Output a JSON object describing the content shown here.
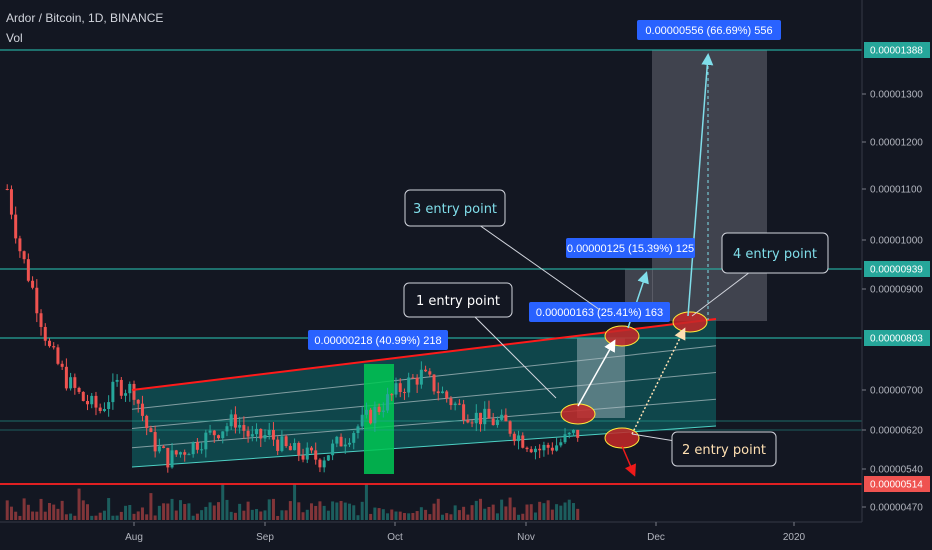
{
  "header": {
    "title": "Ardor / Bitcoin, 1D, BINANCE",
    "volume_label": "Vol"
  },
  "chart_data": {
    "type": "candlestick",
    "symbol": "Ardor / Bitcoin",
    "interval": "1D",
    "exchange": "BINANCE",
    "x_ticks": [
      "Aug",
      "Sep",
      "Oct",
      "Nov",
      "Dec",
      "2020"
    ],
    "y_ticks": [
      1.3e-05,
      1.2e-05,
      1.1e-05,
      1e-05,
      9e-06,
      7e-06,
      6.2e-06,
      5.4e-06,
      4.7e-06
    ],
    "y_tick_labels": [
      "0.00001300",
      "0.00001200",
      "0.00001100",
      "0.00001000",
      "0.00000900",
      "0.00000700",
      "0.00000620",
      "0.00000540",
      "0.00000470"
    ],
    "ylim": [
      4.45e-06,
      1.475e-05
    ],
    "price_levels": [
      {
        "value": 1.388e-05,
        "label": "0.00001388",
        "color": "#26a69a"
      },
      {
        "value": 9.39e-06,
        "label": "0.00000939",
        "color": "#26a69a"
      },
      {
        "value": 8.03e-06,
        "label": "0.00000803",
        "color": "#26a69a"
      },
      {
        "value": 5.14e-06,
        "label": "0.00000514",
        "color": "#ef5350"
      }
    ],
    "measurements": [
      {
        "label": "0.00000218 (40.99%) 218"
      },
      {
        "label": "0.00000163 (25.41%) 163"
      },
      {
        "label": "0.00000125 (15.39%) 125"
      },
      {
        "label": "0.00000556 (66.69%) 556"
      }
    ],
    "callouts": [
      {
        "label": "1 entry point",
        "color": "#ffffff"
      },
      {
        "label": "2 entry point",
        "color": "#ffe0b2"
      },
      {
        "label": "3 entry point",
        "color": "#80deea"
      },
      {
        "label": "4 entry point",
        "color": "#80deea"
      }
    ],
    "colors": {
      "background": "#131722",
      "up": "#26a69a",
      "down": "#ef5350",
      "channel_fill": "#0d6e6e",
      "channel_top": "#ff1a1a",
      "label_blue": "#2962ff"
    },
    "grid": false
  }
}
